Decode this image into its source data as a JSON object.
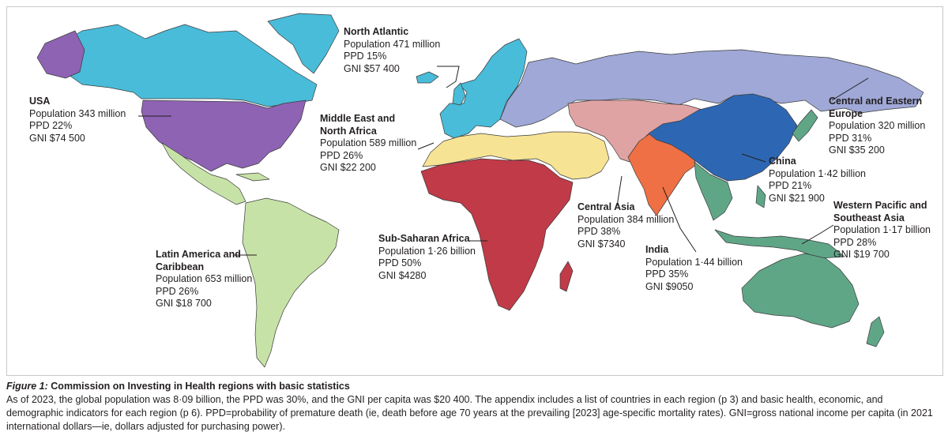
{
  "colors": {
    "usa": "#8e63b3",
    "north_atlantic": "#49bcd9",
    "central_eastern_europe": "#9fa8d6",
    "mena": "#f7e394",
    "ssa": "#c03a48",
    "central_asia": "#e0a3a3",
    "india": "#ef7044",
    "china": "#2d67b3",
    "wpsa": "#5fa687",
    "latam": "#c7e2a7"
  },
  "regions": [
    {
      "key": "north_atlantic",
      "name": "North Atlantic",
      "population": "Population 471 million",
      "ppd": "PPD 15%",
      "gni": "GNI $57 400"
    },
    {
      "key": "usa",
      "name": "USA",
      "population": "Population 343 million",
      "ppd": "PPD 22%",
      "gni": "GNI $74 500"
    },
    {
      "key": "mena",
      "name": "Middle East and North Africa",
      "population": "Population 589 million",
      "ppd": "PPD 26%",
      "gni": "GNI $22 200"
    },
    {
      "key": "central_eastern_europe",
      "name": "Central and Eastern Europe",
      "population": "Population 320 million",
      "ppd": "PPD 31%",
      "gni": "GNI $35 200"
    },
    {
      "key": "china",
      "name": "China",
      "population": "Population 1·42 billion",
      "ppd": "PPD 21%",
      "gni": "GNI $21 900"
    },
    {
      "key": "central_asia",
      "name": "Central Asia",
      "population": "Population 384 million",
      "ppd": "PPD 38%",
      "gni": "GNI $7340"
    },
    {
      "key": "wpsa",
      "name": "Western Pacific and Southeast Asia",
      "population": "Population 1·17 billion",
      "ppd": "PPD 28%",
      "gni": "GNI $19 700"
    },
    {
      "key": "ssa",
      "name": "Sub-Saharan Africa",
      "population": "Population 1·26 billion",
      "ppd": "PPD 50%",
      "gni": "GNI $4280"
    },
    {
      "key": "india",
      "name": "India",
      "population": "Population 1·44 billion",
      "ppd": "PPD 35%",
      "gni": "GNI $9050"
    },
    {
      "key": "latam",
      "name": "Latin America and Caribbean",
      "population": "Population 653 million",
      "ppd": "PPD 26%",
      "gni": "GNI $18 700"
    }
  ],
  "caption": {
    "figure_number": "Figure 1:",
    "title": "Commission on Investing in Health regions with basic statistics",
    "body": "As of 2023, the global population was 8·09 billion, the PPD was 30%, and the GNI per capita was $20 400. The appendix includes a list of countries in each region (p 3) and basic health, economic, and demographic indicators for each region (p 6). PPD=probability of premature death (ie, death before age 70 years at the prevailing [2023] age-specific mortality rates). GNI=gross national income per capita (in 2021 international dollars—ie, dollars adjusted for purchasing power)."
  }
}
